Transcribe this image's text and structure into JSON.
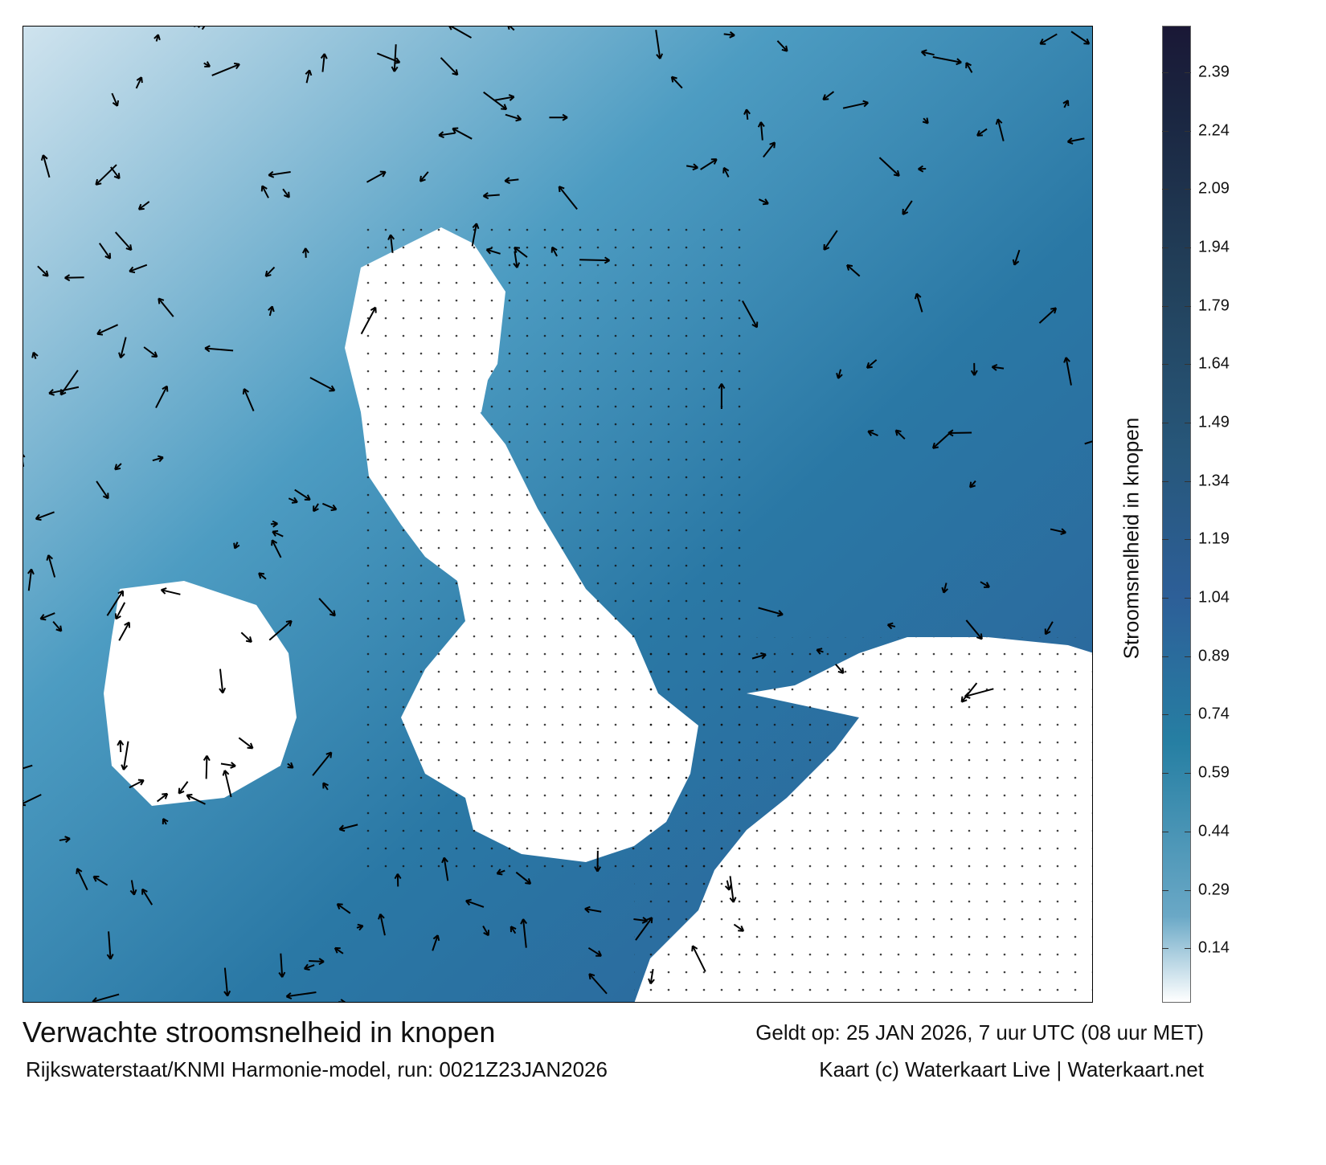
{
  "map": {
    "variable": "stroomsnelheid",
    "units": "knopen",
    "land_color": "#ffffff"
  },
  "colorbar": {
    "label": "Stroomsnelheid in knopen",
    "ticks": [
      "2.39",
      "2.24",
      "2.09",
      "1.94",
      "1.79",
      "1.64",
      "1.49",
      "1.34",
      "1.19",
      "1.04",
      "0.89",
      "0.74",
      "0.59",
      "0.44",
      "0.29",
      "0.14"
    ],
    "range": [
      0,
      2.51
    ],
    "bands": [
      {
        "from": 2.09,
        "to": 2.51,
        "color": "#1a2540"
      },
      {
        "from": 1.64,
        "to": 2.09,
        "color": "#22405a"
      },
      {
        "from": 1.19,
        "to": 1.64,
        "color": "#27577a"
      },
      {
        "from": 0.89,
        "to": 1.19,
        "color": "#2d5f98"
      },
      {
        "from": 0.44,
        "to": 0.89,
        "color": "#267fa3"
      },
      {
        "from": 0,
        "to": 0.44,
        "color": "#6aa8c6"
      }
    ]
  },
  "footer": {
    "title": "Verwachte stroomsnelheid in knopen",
    "valid": "Geldt op: 25 JAN 2026, 7 uur UTC (08 uur MET)",
    "model": "Rijkswaterstaat/KNMI Harmonie-model, run: 0021Z23JAN2026",
    "credit": "Kaart (c) Waterkaart Live | Waterkaart.net"
  }
}
